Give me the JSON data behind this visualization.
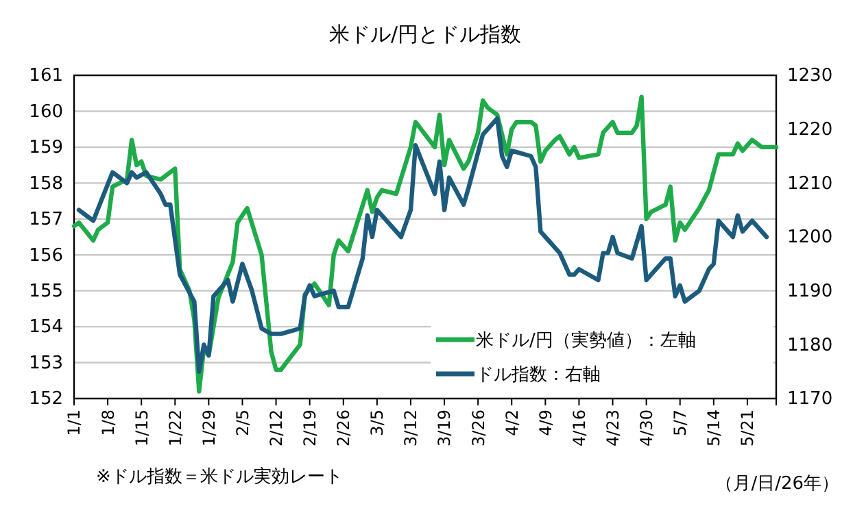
{
  "chart_data": {
    "type": "line",
    "title": "米ドル/円とドル指数",
    "xlabel": "（月/日/26年）",
    "annotations": [
      "※ドル指数＝米ドル実効レート"
    ],
    "xlim": [
      "--01-01",
      "--05-27"
    ],
    "xticks": [
      {
        "value": "--01-01",
        "label": "1/1"
      },
      {
        "value": "--01-08",
        "label": "1/8"
      },
      {
        "value": "--01-15",
        "label": "1/15"
      },
      {
        "value": "--01-22",
        "label": "1/22"
      },
      {
        "value": "--01-29",
        "label": "1/29"
      },
      {
        "value": "--02-05",
        "label": "2/5"
      },
      {
        "value": "--02-12",
        "label": "2/12"
      },
      {
        "value": "--02-19",
        "label": "2/19"
      },
      {
        "value": "--02-26",
        "label": "2/26"
      },
      {
        "value": "--03-05",
        "label": "3/5"
      },
      {
        "value": "--03-12",
        "label": "3/12"
      },
      {
        "value": "--03-19",
        "label": "3/19"
      },
      {
        "value": "--03-26",
        "label": "3/26"
      },
      {
        "value": "--04-02",
        "label": "4/2"
      },
      {
        "value": "--04-09",
        "label": "4/9"
      },
      {
        "value": "--04-16",
        "label": "4/16"
      },
      {
        "value": "--04-23",
        "label": "4/23"
      },
      {
        "value": "--04-30",
        "label": "4/30"
      },
      {
        "value": "--05-07",
        "label": "5/7"
      },
      {
        "value": "--05-14",
        "label": "5/14"
      },
      {
        "value": "--05-21",
        "label": "5/21"
      }
    ],
    "ylim": [
      152,
      161
    ],
    "yticks": [
      152,
      153,
      154,
      155,
      156,
      157,
      158,
      159,
      160,
      161
    ],
    "y2lim": [
      1170,
      1230
    ],
    "y2ticks": [
      1170,
      1180,
      1190,
      1200,
      1210,
      1220,
      1230
    ],
    "grid": "y",
    "legend": "bottom right",
    "marker": "none",
    "line_style": "solid",
    "series": [
      {
        "name": "米ドル/円（実勢値）：左軸",
        "color": "#1fab4a",
        "x": [
          "--01-01",
          "--01-02",
          "--01-05",
          "--01-06",
          "--01-08",
          "--01-09",
          "--01-12",
          "--01-13",
          "--01-14",
          "--01-15",
          "--01-16",
          "--01-19",
          "--01-22",
          "--01-23",
          "--01-25",
          "--01-26",
          "--01-27",
          "--01-28",
          "--01-29",
          "--01-31",
          "--02-03",
          "--02-04",
          "--02-06",
          "--02-09",
          "--02-11",
          "--02-12",
          "--02-13",
          "--02-17",
          "--02-18",
          "--02-20",
          "--02-21",
          "--02-23",
          "--02-24",
          "--02-25",
          "--02-27",
          "--03-03",
          "--03-04",
          "--03-05",
          "--03-06",
          "--03-09",
          "--03-12",
          "--03-13",
          "--03-17",
          "--03-18",
          "--03-19",
          "--03-20",
          "--03-23",
          "--03-24",
          "--03-26",
          "--03-27",
          "--03-28",
          "--03-30",
          "--04-01",
          "--04-02",
          "--04-03",
          "--04-06",
          "--04-07",
          "--04-08",
          "--04-09",
          "--04-11",
          "--04-12",
          "--04-14",
          "--04-15",
          "--04-16",
          "--04-20",
          "--04-21",
          "--04-23",
          "--04-24",
          "--04-27",
          "--04-28",
          "--04-29",
          "--04-30",
          "--05-01",
          "--05-04",
          "--05-05",
          "--05-06",
          "--05-07",
          "--05-08",
          "--05-11",
          "--05-13",
          "--05-15",
          "--05-18",
          "--05-19",
          "--05-20",
          "--05-22",
          "--05-24",
          "--05-27"
        ],
        "values": [
          156.8,
          156.9,
          156.4,
          156.7,
          156.9,
          157.9,
          158.1,
          159.2,
          158.5,
          158.6,
          158.2,
          158.1,
          158.4,
          155.6,
          155.0,
          154.2,
          152.2,
          153.4,
          153.2,
          154.8,
          155.8,
          156.9,
          157.3,
          156.0,
          153.3,
          152.8,
          152.8,
          153.5,
          154.9,
          155.2,
          155.0,
          154.6,
          156.0,
          156.4,
          156.1,
          157.8,
          157.2,
          157.6,
          157.8,
          157.7,
          159.0,
          159.7,
          159.0,
          159.9,
          158.5,
          159.2,
          158.4,
          158.6,
          159.4,
          160.3,
          160.1,
          159.9,
          158.8,
          159.5,
          159.7,
          159.7,
          159.6,
          158.6,
          158.9,
          159.2,
          159.3,
          158.8,
          159.0,
          158.7,
          158.8,
          159.4,
          159.7,
          159.4,
          159.4,
          159.6,
          160.4,
          157.0,
          157.2,
          157.4,
          157.9,
          156.4,
          156.9,
          156.7,
          157.3,
          157.8,
          158.8,
          158.8,
          159.1,
          158.9,
          159.2,
          159.0,
          159.0
        ]
      },
      {
        "name": "ドル指数：右軸",
        "color": "#1c5b7d",
        "axis": "y2",
        "x": [
          "--01-02",
          "--01-05",
          "--01-09",
          "--01-12",
          "--01-13",
          "--01-14",
          "--01-16",
          "--01-19",
          "--01-20",
          "--01-21",
          "--01-23",
          "--01-26",
          "--01-27",
          "--01-28",
          "--01-29",
          "--01-30",
          "--02-02",
          "--02-03",
          "--02-05",
          "--02-07",
          "--02-09",
          "--02-11",
          "--02-12",
          "--02-13",
          "--02-17",
          "--02-18",
          "--02-19",
          "--02-20",
          "--02-24",
          "--02-25",
          "--02-27",
          "--03-02",
          "--03-03",
          "--03-04",
          "--03-05",
          "--03-10",
          "--03-12",
          "--03-13",
          "--03-17",
          "--03-18",
          "--03-19",
          "--03-20",
          "--03-23",
          "--03-24",
          "--03-27",
          "--03-30",
          "--03-31",
          "--04-01",
          "--04-02",
          "--04-06",
          "--04-07",
          "--04-08",
          "--04-09",
          "--04-12",
          "--04-14",
          "--04-15",
          "--04-16",
          "--04-20",
          "--04-21",
          "--04-22",
          "--04-23",
          "--04-24",
          "--04-27",
          "--04-29",
          "--04-30",
          "--05-02",
          "--05-04",
          "--05-05",
          "--05-06",
          "--05-07",
          "--05-08",
          "--05-11",
          "--05-13",
          "--05-14",
          "--05-15",
          "--05-18",
          "--05-19",
          "--05-20",
          "--05-22",
          "--05-25"
        ],
        "values": [
          1205,
          1203,
          1212,
          1210,
          1212,
          1211,
          1212,
          1208,
          1206,
          1206,
          1193,
          1188,
          1175,
          1180,
          1178,
          1189,
          1192,
          1188,
          1195,
          1190,
          1183,
          1182,
          1182,
          1182,
          1183,
          1189,
          1191,
          1189,
          1190,
          1187,
          1187,
          1196,
          1204,
          1200,
          1205,
          1200,
          1205,
          1217,
          1208,
          1214,
          1205,
          1211,
          1206,
          1209,
          1219,
          1222,
          1215,
          1213,
          1216,
          1215,
          1213,
          1201,
          1200,
          1197,
          1193,
          1193,
          1194,
          1192,
          1197,
          1197,
          1200,
          1197,
          1196,
          1202,
          1192,
          1194,
          1196,
          1196,
          1189,
          1191,
          1188,
          1190,
          1194,
          1195,
          1203,
          1200,
          1204,
          1201,
          1203,
          1200
        ]
      }
    ]
  }
}
